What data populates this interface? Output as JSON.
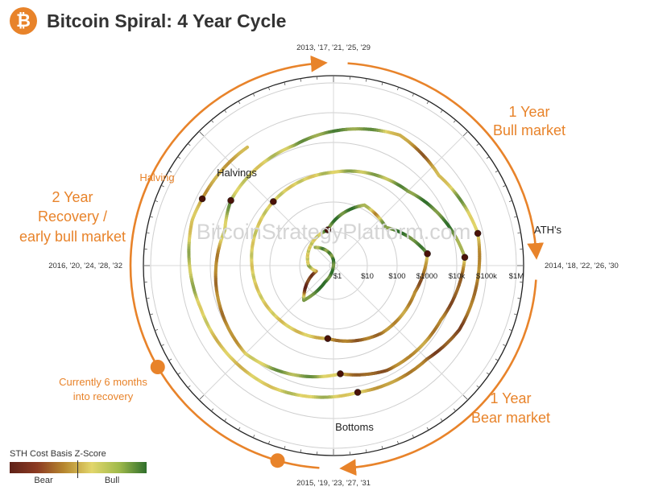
{
  "header": {
    "title": "Bitcoin Spiral: 4 Year Cycle",
    "logo_symbol": "₿",
    "brand_color": "#e8832a"
  },
  "chart_data": {
    "type": "polar-spiral",
    "title": "Bitcoin Spiral: 4 Year Cycle",
    "radial_axis": {
      "scale": "log",
      "tick_labels": [
        "$1",
        "$10",
        "$100",
        "$1000",
        "$10k",
        "$100k",
        "$1M"
      ],
      "tick_values": [
        1,
        10,
        100,
        1000,
        10000,
        100000,
        1000000
      ]
    },
    "angular_labels": {
      "top": "2013, '17, '21, '25, '29",
      "right": "2014, '18, '22, '26, '30",
      "bottom": "2015, '19, '23, '27, '31",
      "left": "2016, '20, '24, '28, '32"
    },
    "watermark": "BitcoinStrategyPlatform.com",
    "annotations": {
      "halvings": "Halvings",
      "aths": "ATH's",
      "bottoms": "Bottoms",
      "bull_market_line1": "1 Year",
      "bull_market_line2": "Bull market",
      "bear_market_line1": "1 Year",
      "bear_market_line2": "Bear market",
      "recovery_line1": "2 Year",
      "recovery_line2": "Recovery /",
      "recovery_line3": "early bull market",
      "halving_marker": "Halving",
      "current_line1": "Currently 6 months",
      "current_line2": "into recovery"
    },
    "price_series": [
      {
        "t": 2010.5,
        "p": 0.1
      },
      {
        "t": 2011.0,
        "p": 0.5
      },
      {
        "t": 2011.3,
        "p": 3
      },
      {
        "t": 2011.45,
        "p": 25
      },
      {
        "t": 2011.8,
        "p": 3
      },
      {
        "t": 2012.0,
        "p": 5
      },
      {
        "t": 2012.5,
        "p": 8
      },
      {
        "t": 2012.9,
        "p": 12
      },
      {
        "t": 2013.3,
        "p": 140
      },
      {
        "t": 2013.6,
        "p": 110
      },
      {
        "t": 2013.92,
        "p": 1100
      },
      {
        "t": 2014.2,
        "p": 550
      },
      {
        "t": 2014.6,
        "p": 450
      },
      {
        "t": 2015.05,
        "p": 210
      },
      {
        "t": 2015.5,
        "p": 270
      },
      {
        "t": 2016.0,
        "p": 400
      },
      {
        "t": 2016.52,
        "p": 650
      },
      {
        "t": 2017.0,
        "p": 1000
      },
      {
        "t": 2017.5,
        "p": 2500
      },
      {
        "t": 2017.96,
        "p": 19000
      },
      {
        "t": 2018.3,
        "p": 8000
      },
      {
        "t": 2018.7,
        "p": 6500
      },
      {
        "t": 2018.96,
        "p": 3200
      },
      {
        "t": 2019.5,
        "p": 11000
      },
      {
        "t": 2019.9,
        "p": 7200
      },
      {
        "t": 2020.2,
        "p": 5000
      },
      {
        "t": 2020.36,
        "p": 8800
      },
      {
        "t": 2020.8,
        "p": 13000
      },
      {
        "t": 2021.3,
        "p": 60000
      },
      {
        "t": 2021.55,
        "p": 33000
      },
      {
        "t": 2021.86,
        "p": 67000
      },
      {
        "t": 2022.3,
        "p": 40000
      },
      {
        "t": 2022.5,
        "p": 20000
      },
      {
        "t": 2022.88,
        "p": 15800
      },
      {
        "t": 2023.3,
        "p": 28000
      },
      {
        "t": 2023.8,
        "p": 35000
      },
      {
        "t": 2024.2,
        "p": 70000
      },
      {
        "t": 2024.3,
        "p": 64000
      },
      {
        "t": 2024.6,
        "p": 60000
      }
    ],
    "halving_events": [
      2012.9,
      2016.52,
      2020.36,
      2024.3
    ],
    "ath_events": [
      2013.92,
      2017.96,
      2021.86
    ],
    "bottom_events": [
      2015.05,
      2018.96,
      2022.88
    ],
    "legend": {
      "title": "STH Cost Basis Z-Score",
      "low_label": "Bear",
      "high_label": "Bull",
      "colors": [
        "#5e2118",
        "#b7882f",
        "#e2d66b",
        "#2f6e2b"
      ]
    },
    "annotation_color": "#e8832a"
  }
}
